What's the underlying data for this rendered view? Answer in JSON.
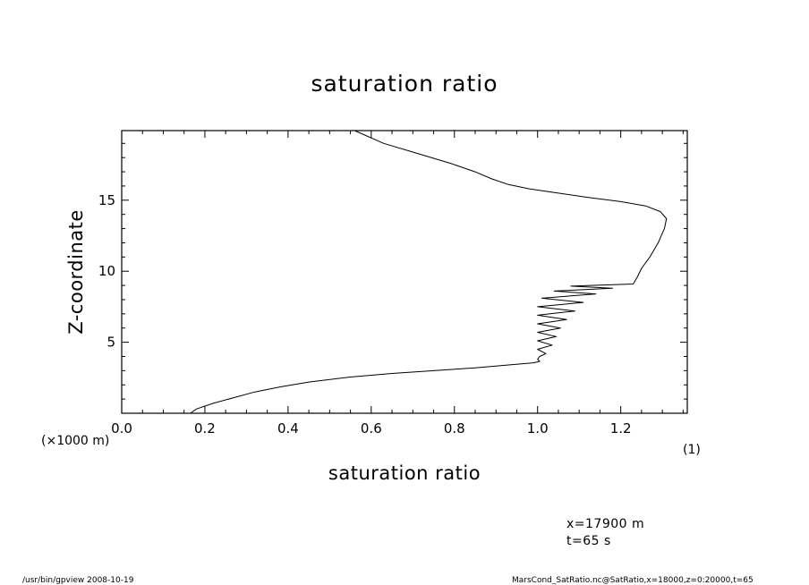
{
  "chart_data": {
    "type": "line",
    "title": "saturation ratio",
    "xlabel": "saturation ratio",
    "ylabel": "Z-coordinate",
    "x_unit_label": "(1)",
    "y_unit_label": "(×1000 m)",
    "xlim": [
      0.0,
      1.36
    ],
    "ylim": [
      0.0,
      19.9
    ],
    "x_ticks": [
      0.0,
      0.2,
      0.4,
      0.6,
      0.8,
      1.0,
      1.2
    ],
    "x_tick_labels": [
      "0.0",
      "0.2",
      "0.4",
      "0.6",
      "0.8",
      "1.0",
      "1.2"
    ],
    "y_ticks": [
      5,
      10,
      15
    ],
    "y_tick_labels": [
      "5",
      "10",
      "15"
    ],
    "grid": false,
    "series": [
      {
        "color": "#000000",
        "points": [
          [
            0.165,
            0.0
          ],
          [
            0.18,
            0.3
          ],
          [
            0.22,
            0.7
          ],
          [
            0.27,
            1.1
          ],
          [
            0.32,
            1.5
          ],
          [
            0.38,
            1.85
          ],
          [
            0.45,
            2.2
          ],
          [
            0.55,
            2.55
          ],
          [
            0.65,
            2.8
          ],
          [
            0.75,
            3.0
          ],
          [
            0.85,
            3.2
          ],
          [
            0.93,
            3.4
          ],
          [
            0.99,
            3.55
          ],
          [
            1.005,
            3.65
          ],
          [
            1.0,
            3.8
          ],
          [
            1.005,
            4.0
          ],
          [
            1.02,
            4.2
          ],
          [
            1.0,
            4.5
          ],
          [
            1.035,
            4.8
          ],
          [
            1.0,
            5.1
          ],
          [
            1.045,
            5.4
          ],
          [
            1.0,
            5.7
          ],
          [
            1.055,
            6.0
          ],
          [
            1.0,
            6.3
          ],
          [
            1.07,
            6.6
          ],
          [
            1.0,
            6.9
          ],
          [
            1.09,
            7.2
          ],
          [
            1.0,
            7.5
          ],
          [
            1.11,
            7.8
          ],
          [
            1.01,
            8.1
          ],
          [
            1.14,
            8.4
          ],
          [
            1.04,
            8.6
          ],
          [
            1.18,
            8.8
          ],
          [
            1.08,
            8.95
          ],
          [
            1.23,
            9.1
          ],
          [
            1.24,
            9.6
          ],
          [
            1.25,
            10.2
          ],
          [
            1.27,
            11.0
          ],
          [
            1.29,
            12.0
          ],
          [
            1.305,
            13.0
          ],
          [
            1.31,
            13.7
          ],
          [
            1.295,
            14.2
          ],
          [
            1.26,
            14.6
          ],
          [
            1.2,
            14.9
          ],
          [
            1.12,
            15.2
          ],
          [
            1.05,
            15.5
          ],
          [
            0.98,
            15.8
          ],
          [
            0.93,
            16.1
          ],
          [
            0.89,
            16.5
          ],
          [
            0.85,
            17.0
          ],
          [
            0.79,
            17.6
          ],
          [
            0.71,
            18.3
          ],
          [
            0.63,
            19.0
          ],
          [
            0.56,
            19.9
          ]
        ]
      }
    ]
  },
  "info": {
    "line1": "x=17900 m",
    "line2": "t=65 s"
  },
  "footer": {
    "left": "/usr/bin/gpview   2008-10-19",
    "right": "MarsCond_SatRatio.nc@SatRatio,x=18000,z=0:20000,t=65"
  }
}
